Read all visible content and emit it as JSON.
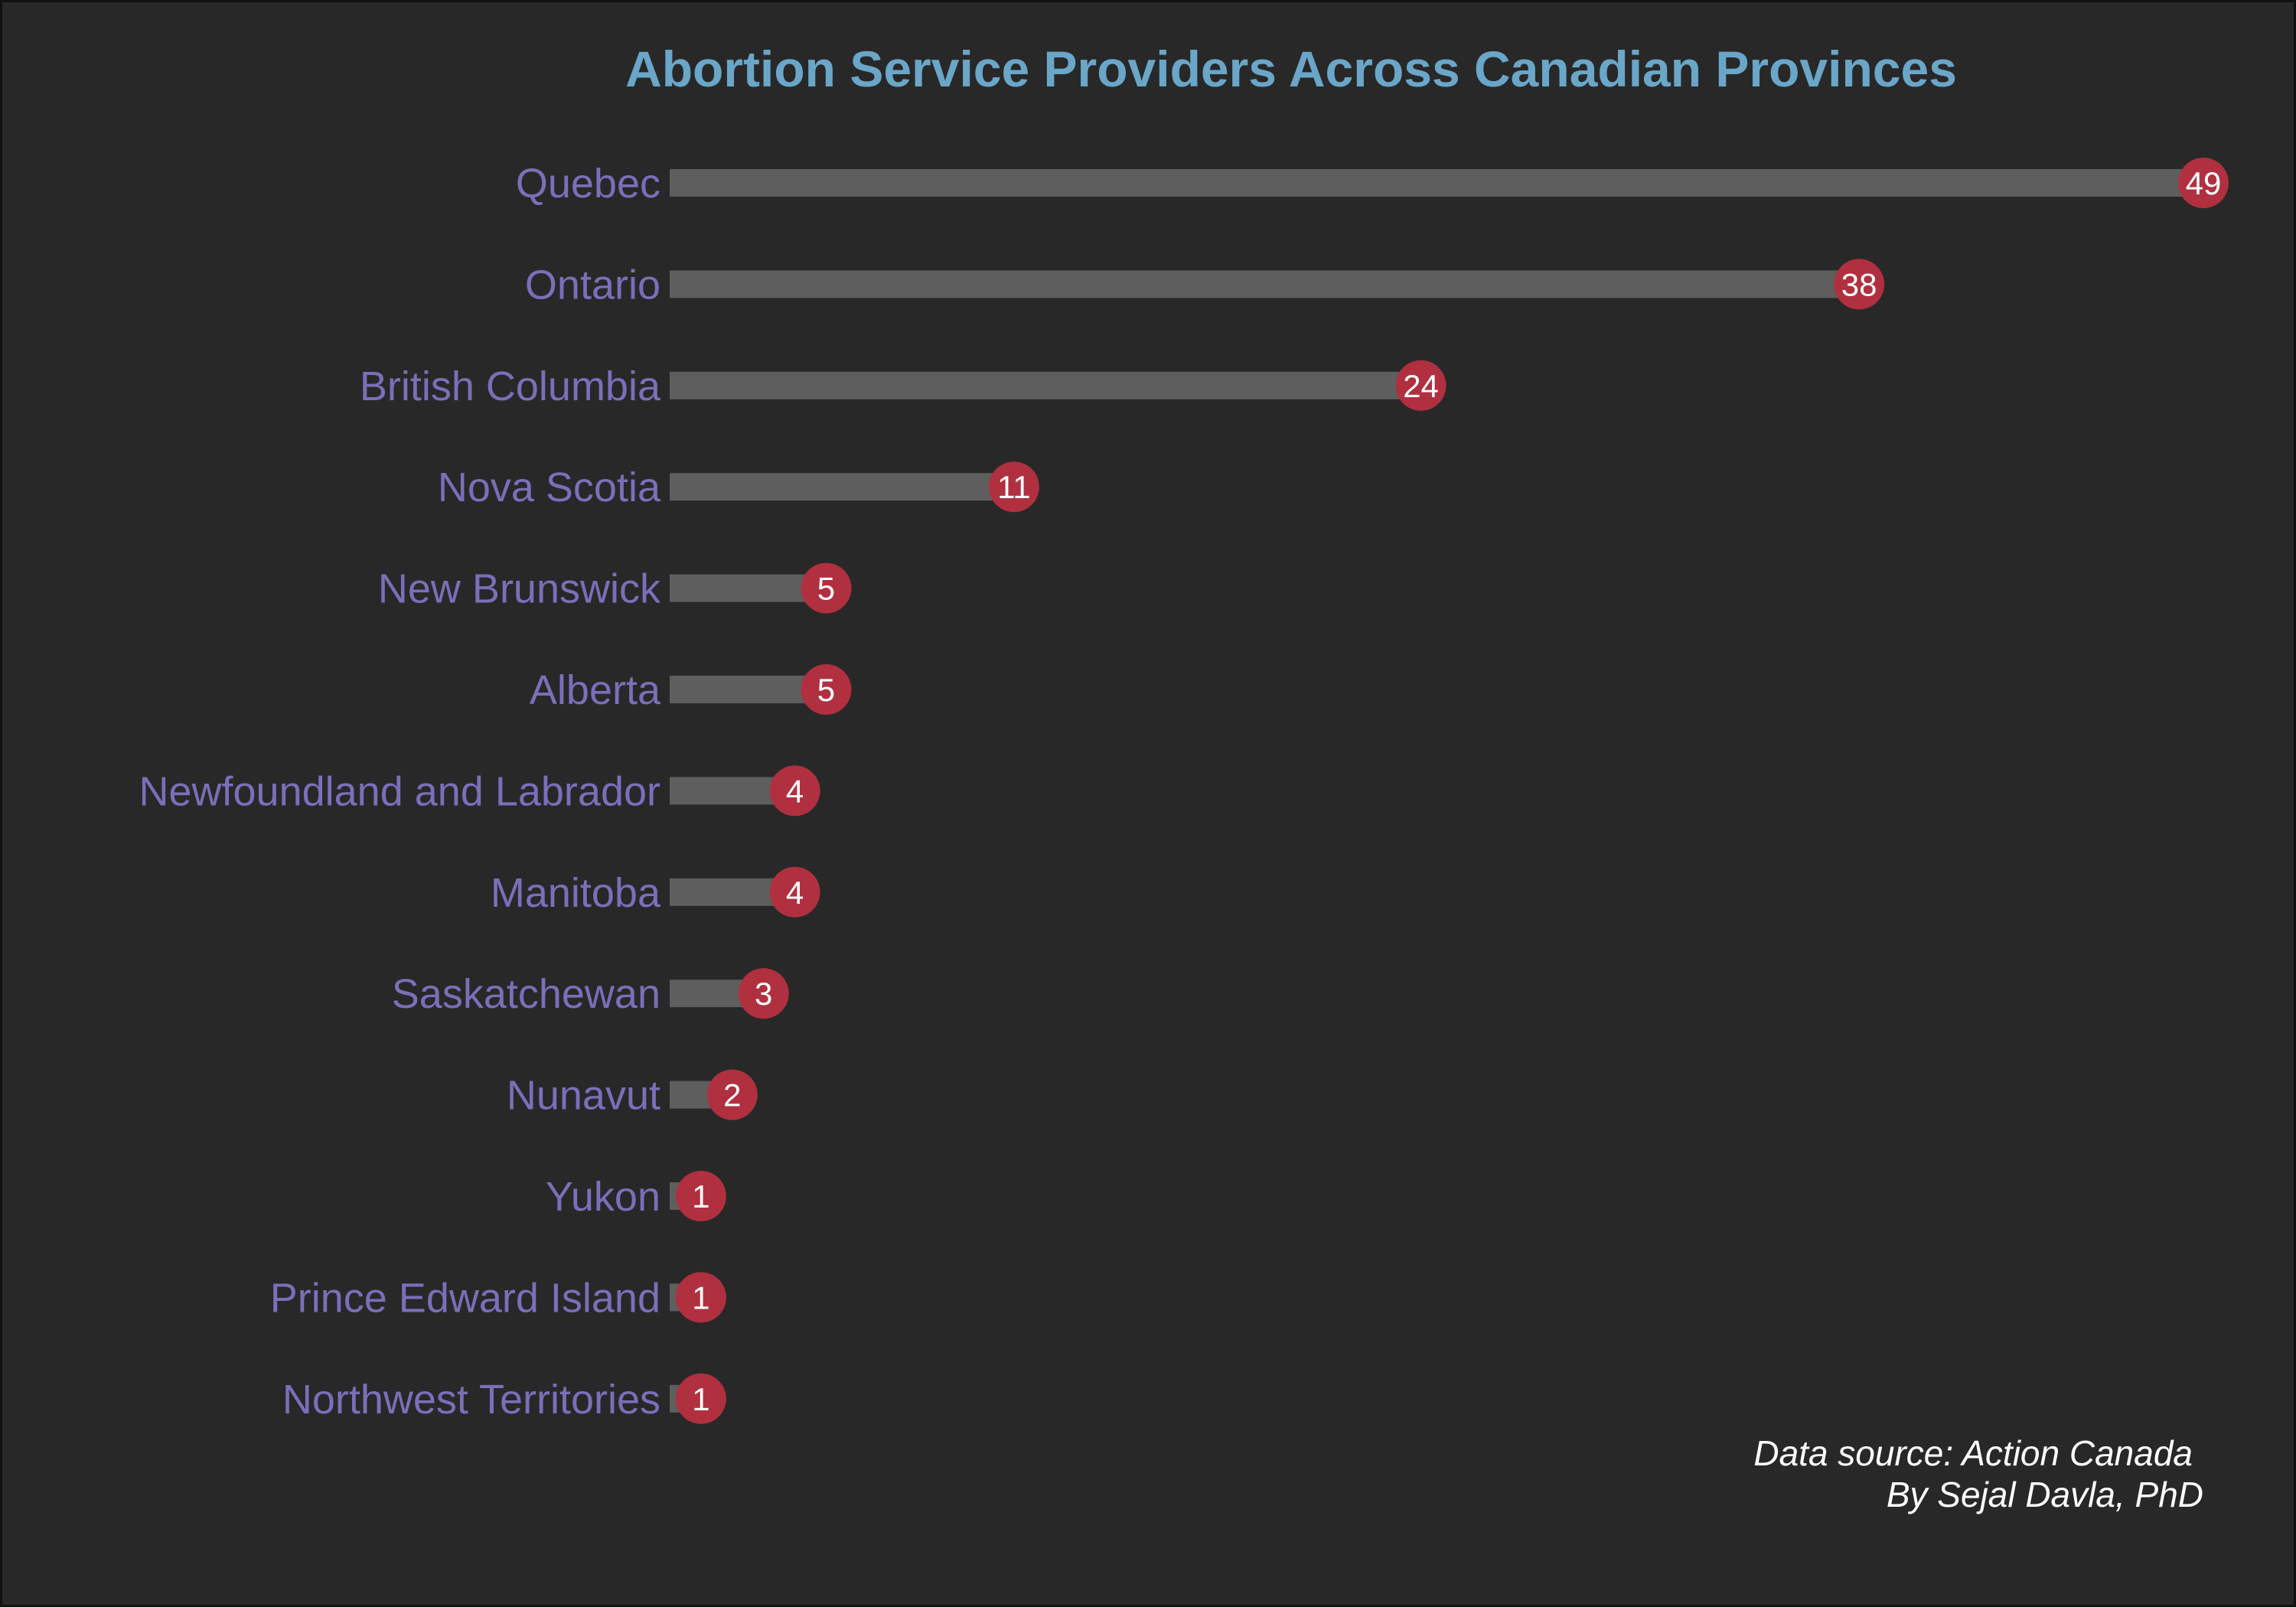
{
  "chart_data": {
    "type": "bar",
    "orientation": "horizontal",
    "style": "lollipop",
    "title": "Abortion Service Providers Across Canadian Provinces",
    "categories": [
      "Quebec",
      "Ontario",
      "British Columbia",
      "Nova Scotia",
      "New Brunswick",
      "Alberta",
      "Newfoundland and Labrador",
      "Manitoba",
      "Saskatchewan",
      "Nunavut",
      "Yukon",
      "Prince Edward Island",
      "Northwest Territories"
    ],
    "values": [
      49,
      38,
      24,
      11,
      5,
      5,
      4,
      4,
      3,
      2,
      1,
      1,
      1
    ],
    "xlabel": "",
    "ylabel": "",
    "xlim": [
      0,
      49
    ],
    "grid": false,
    "legend": "none",
    "caption_lines": [
      "Data source: Action Canada",
      "By Sejal Davla, PhD"
    ],
    "colors": {
      "background": "#282828",
      "title": "#6aa6c8",
      "category_label": "#7b6fba",
      "bar": "#5e5e5e",
      "dot": "#b03040",
      "value_label": "#ffffff",
      "caption": "#ffffff"
    }
  }
}
